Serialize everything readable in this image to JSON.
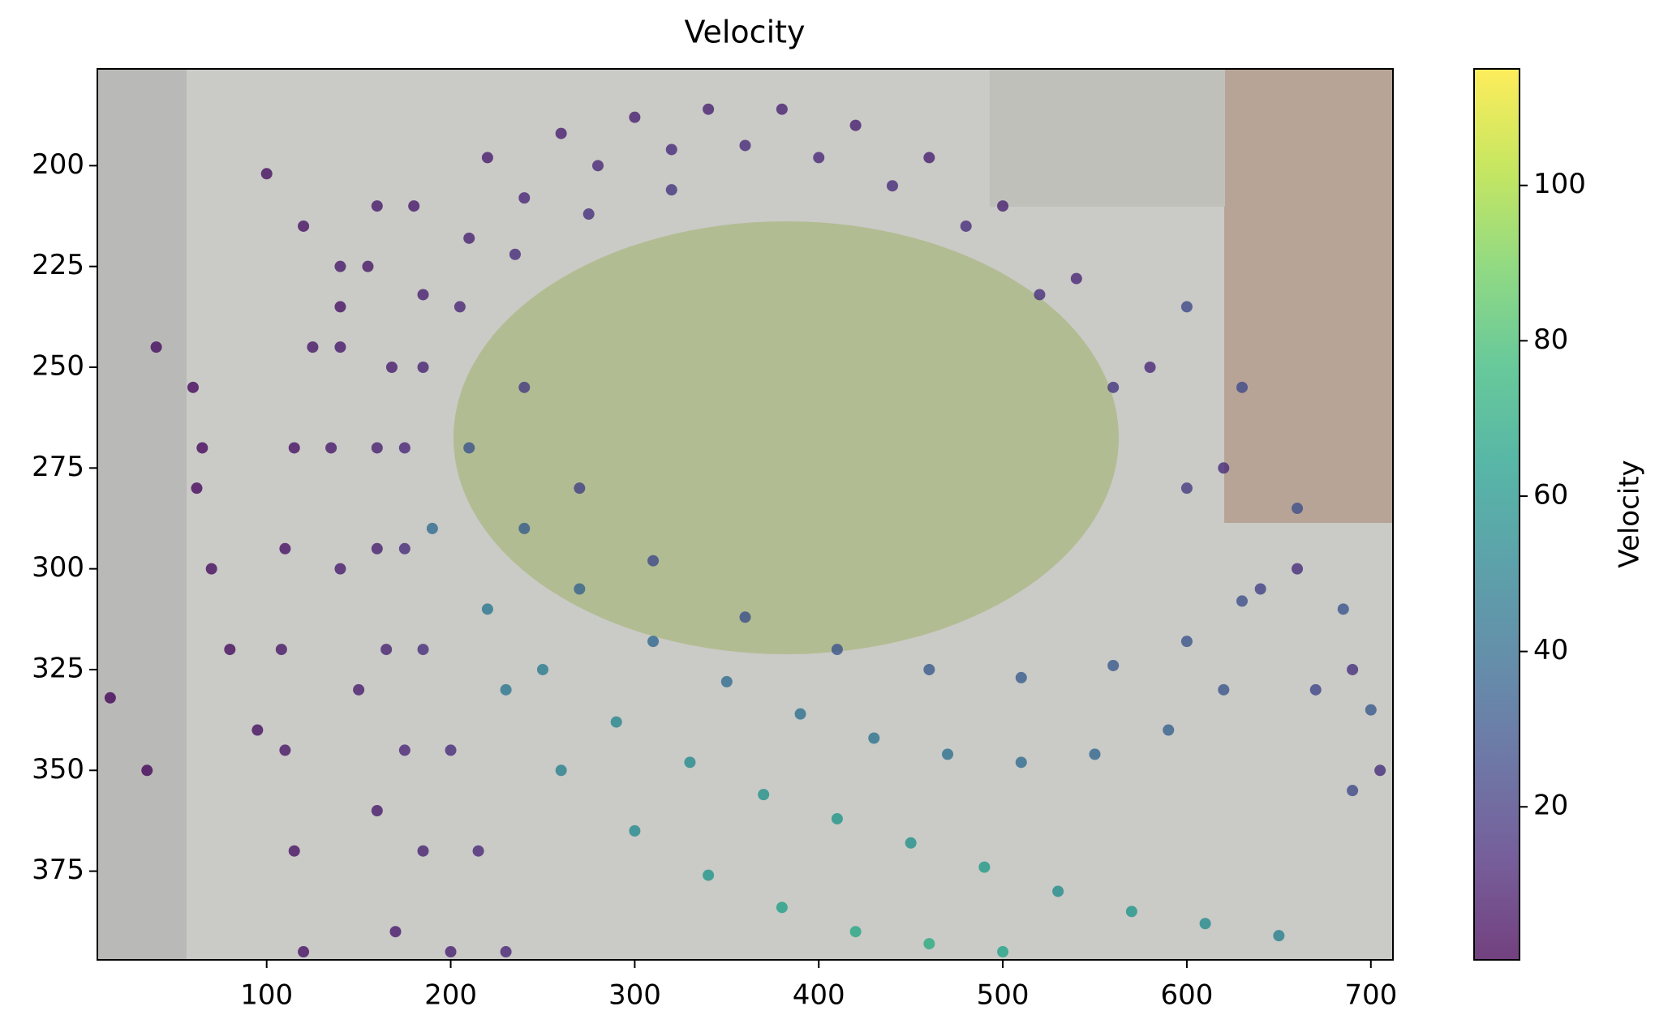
{
  "chart_data": {
    "type": "scatter",
    "title": "Velocity",
    "x": [
      170,
      160,
      150,
      140,
      135,
      140,
      155,
      180,
      220,
      260,
      300,
      340,
      380,
      420,
      460,
      500,
      540,
      580,
      620,
      660,
      690,
      705,
      200,
      185,
      175,
      165,
      160,
      160,
      168,
      185,
      210,
      240,
      280,
      320,
      360,
      400,
      440,
      480,
      520,
      560,
      600,
      640,
      670,
      690,
      230,
      215,
      200,
      185,
      175,
      175,
      185,
      205,
      235,
      275,
      320,
      190,
      220,
      250,
      290,
      330,
      370,
      410,
      450,
      490,
      530,
      570,
      610,
      650,
      210,
      240,
      270,
      310,
      350,
      390,
      430,
      470,
      510,
      550,
      590,
      620,
      240,
      270,
      310,
      360,
      410,
      460,
      510,
      560,
      600,
      630,
      230,
      260,
      300,
      340,
      380,
      420,
      460,
      500,
      600,
      630,
      660,
      685,
      700,
      65,
      62,
      70,
      80,
      95,
      35,
      60,
      15,
      40,
      120,
      115,
      110,
      108,
      110,
      115,
      125,
      140,
      160,
      100,
      120,
      140
    ],
    "y": [
      390,
      360,
      330,
      300,
      270,
      245,
      225,
      210,
      198,
      192,
      188,
      186,
      186,
      190,
      198,
      210,
      228,
      250,
      275,
      300,
      325,
      350,
      395,
      370,
      345,
      320,
      295,
      270,
      250,
      232,
      218,
      208,
      200,
      196,
      195,
      198,
      205,
      215,
      232,
      255,
      280,
      305,
      330,
      355,
      395,
      370,
      345,
      320,
      295,
      270,
      250,
      235,
      222,
      212,
      206,
      290,
      310,
      325,
      338,
      348,
      356,
      362,
      368,
      374,
      380,
      385,
      388,
      391,
      270,
      290,
      305,
      318,
      328,
      336,
      342,
      346,
      348,
      346,
      340,
      330,
      255,
      280,
      298,
      312,
      320,
      325,
      327,
      324,
      318,
      308,
      330,
      350,
      365,
      376,
      384,
      390,
      393,
      395,
      235,
      255,
      285,
      310,
      335,
      270,
      280,
      300,
      320,
      340,
      350,
      255,
      332,
      245,
      395,
      370,
      345,
      320,
      295,
      270,
      245,
      225,
      210,
      202,
      215,
      235
    ],
    "c": [
      8,
      8,
      9,
      9,
      8,
      8,
      7,
      8,
      9,
      10,
      10,
      11,
      11,
      10,
      10,
      11,
      12,
      13,
      14,
      15,
      16,
      15,
      10,
      11,
      12,
      11,
      10,
      10,
      9,
      10,
      11,
      12,
      13,
      14,
      14,
      13,
      14,
      15,
      16,
      18,
      20,
      22,
      24,
      25,
      12,
      13,
      14,
      15,
      14,
      12,
      11,
      12,
      14,
      16,
      18,
      40,
      45,
      48,
      52,
      55,
      58,
      60,
      58,
      62,
      56,
      60,
      55,
      50,
      30,
      33,
      36,
      38,
      40,
      42,
      44,
      43,
      40,
      38,
      35,
      30,
      20,
      22,
      25,
      28,
      30,
      32,
      33,
      32,
      30,
      28,
      45,
      50,
      55,
      60,
      65,
      68,
      70,
      66,
      25,
      26,
      28,
      30,
      32,
      3,
      3,
      4,
      4,
      5,
      2,
      3,
      2,
      4,
      6,
      6,
      7,
      7,
      6,
      6,
      7,
      8,
      8,
      5,
      6,
      6
    ],
    "xlim": [
      8,
      712
    ],
    "xticks": [
      100,
      200,
      300,
      400,
      500,
      600,
      700
    ],
    "ylim": [
      397,
      176
    ],
    "yticks": [
      200,
      225,
      250,
      275,
      300,
      325,
      350,
      375
    ],
    "colorbar": {
      "label": "Velocity",
      "lim": [
        0.3,
        115
      ],
      "ticks": [
        20,
        40,
        60,
        80,
        100
      ],
      "colormap": "viridis"
    }
  }
}
